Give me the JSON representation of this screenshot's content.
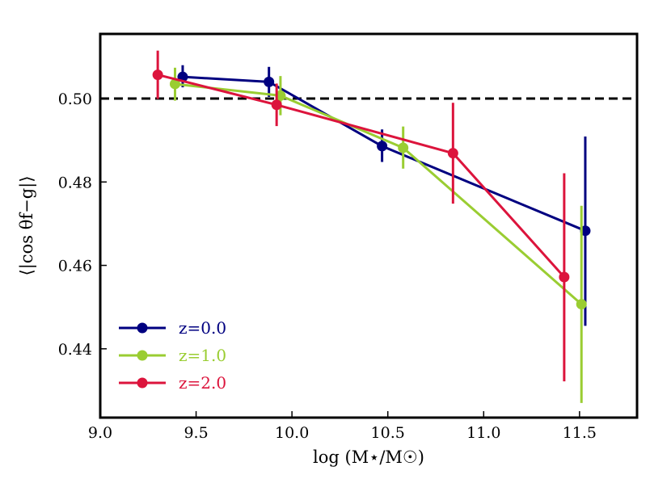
{
  "chart_data": {
    "type": "line",
    "title": "",
    "xlabel": "log (M⋆/M☉)",
    "ylabel": "⟨|cos θf−g|⟩",
    "xlim": [
      9.0,
      11.8
    ],
    "ylim": [
      0.4235,
      0.5155
    ],
    "xticks": [
      9.0,
      9.5,
      10.0,
      10.5,
      11.0,
      11.5
    ],
    "xtick_labels": [
      "9.0",
      "9.5",
      "10.0",
      "10.5",
      "11.0",
      "11.5"
    ],
    "yticks": [
      0.44,
      0.46,
      0.48,
      0.5
    ],
    "ytick_labels": [
      "0.44",
      "0.46",
      "0.48",
      "0.50"
    ],
    "reference_line": {
      "y": 0.5,
      "style": "dashed",
      "color": "#000000"
    },
    "legend_position": "lower-left",
    "series": [
      {
        "name": "z=0.0",
        "color": "#000080",
        "points": [
          {
            "x": 9.43,
            "y": 0.5052,
            "ylo": 0.5027,
            "yhi": 0.508
          },
          {
            "x": 9.88,
            "y": 0.504,
            "ylo": 0.5004,
            "yhi": 0.5076
          },
          {
            "x": 10.47,
            "y": 0.4886,
            "ylo": 0.4848,
            "yhi": 0.4926
          },
          {
            "x": 11.53,
            "y": 0.4683,
            "ylo": 0.4455,
            "yhi": 0.4909
          }
        ]
      },
      {
        "name": "z=1.0",
        "color": "#9acd32",
        "points": [
          {
            "x": 9.39,
            "y": 0.5035,
            "ylo": 0.4995,
            "yhi": 0.5074
          },
          {
            "x": 9.94,
            "y": 0.5007,
            "ylo": 0.496,
            "yhi": 0.5054
          },
          {
            "x": 10.58,
            "y": 0.4882,
            "ylo": 0.4832,
            "yhi": 0.4933
          },
          {
            "x": 11.51,
            "y": 0.4507,
            "ylo": 0.427,
            "yhi": 0.4743
          }
        ]
      },
      {
        "name": "z=2.0",
        "color": "#dc143c",
        "points": [
          {
            "x": 9.3,
            "y": 0.5057,
            "ylo": 0.4999,
            "yhi": 0.5115
          },
          {
            "x": 9.92,
            "y": 0.4985,
            "ylo": 0.4934,
            "yhi": 0.5036
          },
          {
            "x": 10.84,
            "y": 0.4869,
            "ylo": 0.4748,
            "yhi": 0.499
          },
          {
            "x": 11.42,
            "y": 0.4572,
            "ylo": 0.4322,
            "yhi": 0.4821
          }
        ]
      }
    ]
  }
}
